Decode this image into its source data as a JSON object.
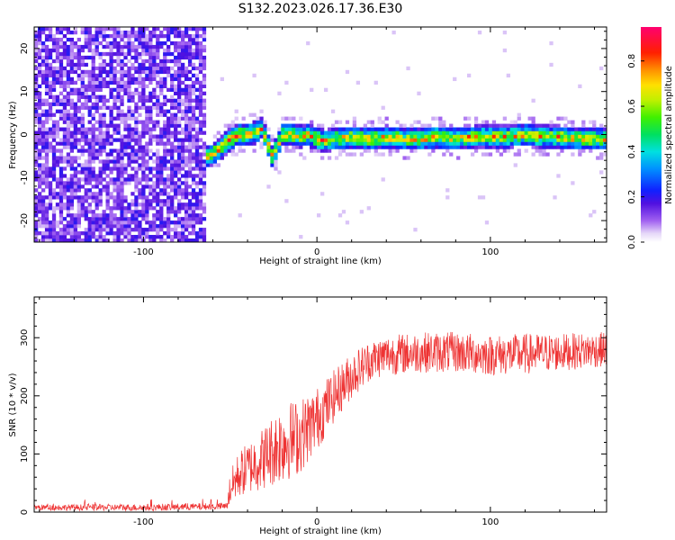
{
  "title": "S132.2023.026.17.36.E30",
  "chart_data": [
    {
      "type": "heatmap",
      "xlabel": "Height of straight line (km)",
      "ylabel": "Frequency (Hz)",
      "xlim": [
        -163,
        167
      ],
      "ylim": [
        -25,
        25
      ],
      "x_ticks": [
        -100,
        0,
        100
      ],
      "y_ticks": [
        -20,
        -10,
        0,
        10,
        20
      ],
      "colorbar": {
        "label": "Normalized spectral amplitude",
        "range": [
          0,
          0.95
        ],
        "ticks": [
          0.0,
          0.2,
          0.4,
          0.6,
          0.8
        ]
      },
      "noise_region_x": [
        -163,
        -63
      ],
      "signal_track": {
        "x": [
          -62,
          -55,
          -50,
          -45,
          -40,
          -35,
          -32,
          -29,
          -26,
          -23,
          -20,
          -15,
          -10,
          -5,
          0,
          5,
          10,
          20,
          30,
          40,
          50,
          60,
          70,
          80,
          90,
          100,
          110,
          120,
          130,
          140,
          150,
          160,
          167
        ],
        "frequency_hz": [
          -5,
          -3,
          -1,
          0,
          0,
          0.5,
          1.5,
          -1,
          -5,
          -3,
          0,
          0,
          -0.5,
          0,
          -1,
          -1.5,
          -1,
          -0.5,
          -1,
          -0.5,
          -1,
          -1,
          -0.5,
          -1,
          -0.5,
          -0.5,
          -0.5,
          0,
          -0.5,
          -0.5,
          -1,
          -1,
          -1
        ]
      }
    },
    {
      "type": "line",
      "xlabel": "Height of straight line (km)",
      "ylabel": "SNR (10 * v/v)",
      "xlim": [
        -163,
        167
      ],
      "ylim": [
        0,
        370
      ],
      "x_ticks": [
        -100,
        0,
        100
      ],
      "y_ticks": [
        0,
        100,
        200,
        300
      ],
      "color": "#ee3333",
      "series_envelope": {
        "x": [
          -163,
          -100,
          -52,
          -50,
          -45,
          -40,
          -30,
          -20,
          -10,
          0,
          10,
          20,
          30,
          40,
          60,
          80,
          100,
          120,
          140,
          167
        ],
        "mean": [
          8,
          8,
          10,
          40,
          65,
          75,
          95,
          120,
          130,
          160,
          200,
          235,
          260,
          270,
          275,
          275,
          270,
          272,
          275,
          280
        ],
        "spread": [
          5,
          6,
          6,
          30,
          40,
          45,
          55,
          70,
          65,
          55,
          45,
          40,
          35,
          35,
          35,
          35,
          35,
          35,
          32,
          30
        ]
      }
    }
  ]
}
